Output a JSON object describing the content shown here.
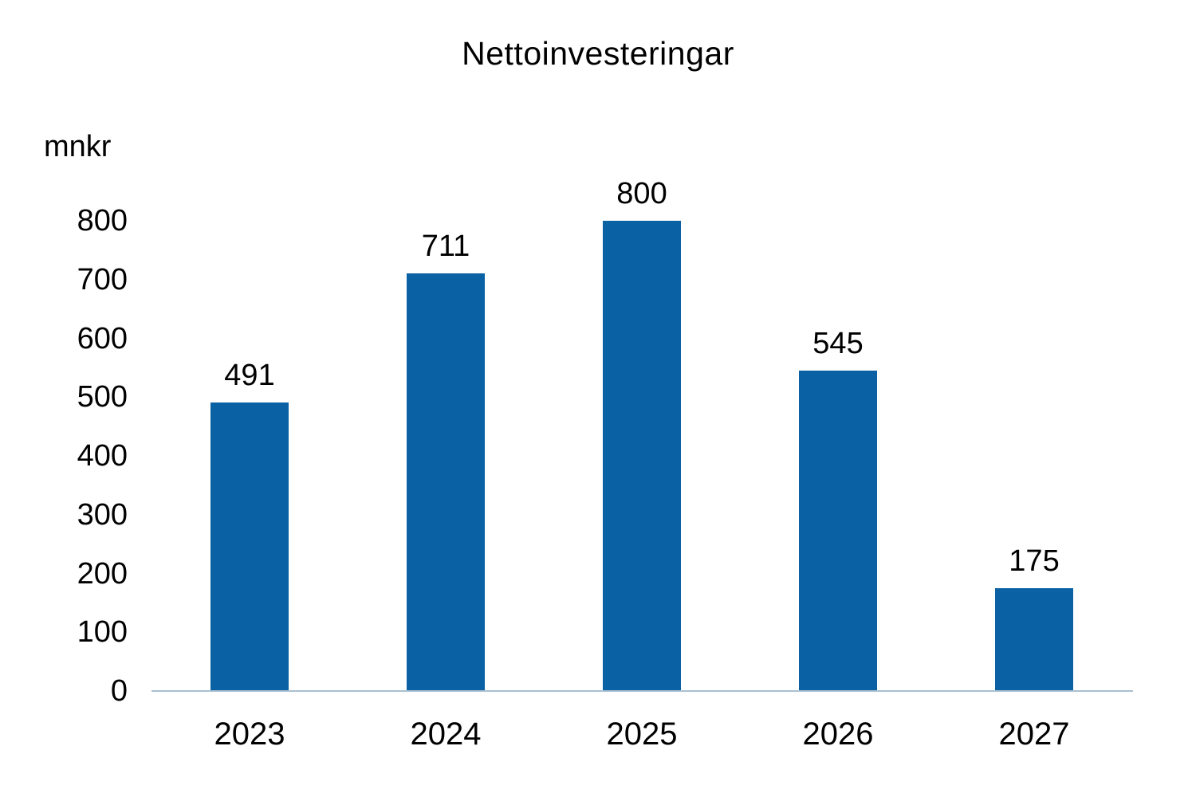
{
  "chart_data": {
    "type": "bar",
    "title": "Nettoinvesteringar",
    "ylabel": "mnkr",
    "xlabel": "",
    "categories": [
      "2023",
      "2024",
      "2025",
      "2026",
      "2027"
    ],
    "values": [
      491,
      711,
      800,
      545,
      175
    ],
    "data_labels": [
      "491",
      "711",
      "800",
      "545",
      "175"
    ],
    "yticks": [
      0,
      100,
      200,
      300,
      400,
      500,
      600,
      700,
      800
    ],
    "ylim": [
      0,
      800
    ],
    "grid": false,
    "legend": false,
    "bar_color": "#0A61A4",
    "axis_line_color": "#A9C0D1",
    "text_color": "#000000",
    "background_color": "#FFFFFF"
  }
}
